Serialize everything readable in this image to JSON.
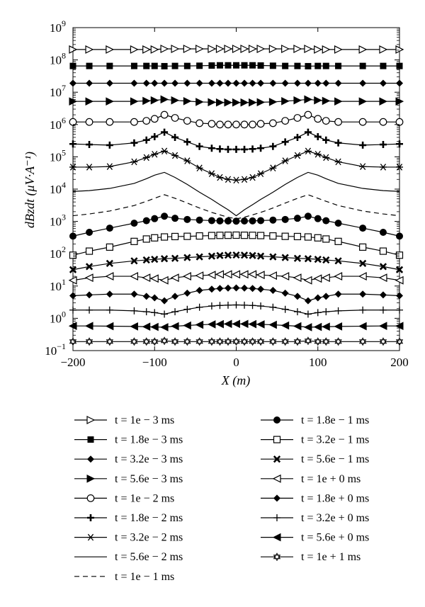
{
  "chart_data": {
    "type": "line",
    "title": "",
    "xlabel": "X (m)",
    "ylabel": "dBzdt (μV·A⁻¹)",
    "xlim": [
      -200,
      200
    ],
    "ylim": [
      0.1,
      1000000000
    ],
    "yscale": "log",
    "grid": false,
    "legend_placement": "bottom",
    "x_ticks": [
      -200,
      -100,
      0,
      100,
      200
    ],
    "y_ticks": [
      {
        "value": 0.1,
        "base": "10",
        "exp": "−1"
      },
      {
        "value": 1,
        "base": "10",
        "exp": "0"
      },
      {
        "value": 10,
        "base": "10",
        "exp": "1"
      },
      {
        "value": 100,
        "base": "10",
        "exp": "2"
      },
      {
        "value": 1000,
        "base": "10",
        "exp": "3"
      },
      {
        "value": 10000,
        "base": "10",
        "exp": "4"
      },
      {
        "value": 100000,
        "base": "10",
        "exp": "5"
      },
      {
        "value": 1000000,
        "base": "10",
        "exp": "6"
      },
      {
        "value": 10000000,
        "base": "10",
        "exp": "7"
      },
      {
        "value": 100000000,
        "base": "10",
        "exp": "8"
      },
      {
        "value": 1000000000,
        "base": "10",
        "exp": "9"
      }
    ],
    "x": [
      -200,
      -180,
      -155,
      -125,
      -110,
      -100,
      -88,
      -75,
      -60,
      -45,
      -30,
      -20,
      -10,
      0,
      10,
      20,
      30,
      45,
      60,
      75,
      88,
      100,
      110,
      125,
      155,
      180,
      200
    ],
    "series": [
      {
        "name": "t = 1e − 3 ms",
        "marker": "tri-right-open",
        "values": [
          210000000.0,
          210000000.0,
          210000000.0,
          210000000.0,
          210000000.0,
          210000000.0,
          220000000.0,
          220000000.0,
          220000000.0,
          220000000.0,
          220000000.0,
          220000000.0,
          220000000.0,
          220000000.0,
          220000000.0,
          220000000.0,
          220000000.0,
          220000000.0,
          220000000.0,
          220000000.0,
          220000000.0,
          210000000.0,
          210000000.0,
          210000000.0,
          210000000.0,
          210000000.0,
          210000000.0
        ]
      },
      {
        "name": "t = 1.8e − 3 ms",
        "marker": "square-filled",
        "values": [
          65000000.0,
          65000000.0,
          65000000.0,
          65000000.0,
          65000000.0,
          65000000.0,
          64000000.0,
          65000000.0,
          65000000.0,
          66000000.0,
          67000000.0,
          68000000.0,
          68000000.0,
          68000000.0,
          68000000.0,
          68000000.0,
          67000000.0,
          66000000.0,
          65000000.0,
          65000000.0,
          64000000.0,
          65000000.0,
          65000000.0,
          65000000.0,
          65000000.0,
          65000000.0,
          65000000.0
        ]
      },
      {
        "name": "t = 3.2e − 3 ms",
        "marker": "diamond-filled",
        "values": [
          19000000.0,
          19000000.0,
          19000000.0,
          19000000.0,
          19000000.0,
          19000000.0,
          19000000.0,
          19000000.0,
          19000000.0,
          19000000.0,
          19000000.0,
          19000000.0,
          19000000.0,
          19000000.0,
          19000000.0,
          19000000.0,
          19000000.0,
          19000000.0,
          19000000.0,
          19000000.0,
          19000000.0,
          19000000.0,
          19000000.0,
          19000000.0,
          19000000.0,
          19000000.0,
          19000000.0
        ]
      },
      {
        "name": "t = 5.6e − 3 ms",
        "marker": "tri-right-filled",
        "values": [
          5200000.0,
          5200000.0,
          5200000.0,
          5200000.0,
          5400000.0,
          5600000.0,
          6000000.0,
          5600000.0,
          5300000.0,
          5000000.0,
          4900000.0,
          4800000.0,
          4800000.0,
          4800000.0,
          4800000.0,
          4800000.0,
          4900000.0,
          5000000.0,
          5300000.0,
          5600000.0,
          6000000.0,
          5600000.0,
          5400000.0,
          5200000.0,
          5200000.0,
          5200000.0,
          5200000.0
        ]
      },
      {
        "name": "t = 1e − 2 ms",
        "marker": "circle-open",
        "values": [
          1200000.0,
          1200000.0,
          1200000.0,
          1200000.0,
          1300000.0,
          1500000.0,
          2000000.0,
          1600000.0,
          1300000.0,
          1100000.0,
          1050000.0,
          1000000.0,
          1000000.0,
          1000000.0,
          1000000.0,
          1000000.0,
          1050000.0,
          1100000.0,
          1300000.0,
          1600000.0,
          2000000.0,
          1500000.0,
          1300000.0,
          1200000.0,
          1200000.0,
          1200000.0,
          1200000.0
        ]
      },
      {
        "name": "t = 1.8e − 2 ms",
        "marker": "plus-thick",
        "values": [
          250000.0,
          240000.0,
          230000.0,
          270000.0,
          330000.0,
          420000.0,
          580000.0,
          400000.0,
          290000.0,
          210000.0,
          185000.0,
          175000.0,
          170000.0,
          170000.0,
          170000.0,
          175000.0,
          185000.0,
          210000.0,
          290000.0,
          400000.0,
          580000.0,
          420000.0,
          330000.0,
          270000.0,
          230000.0,
          240000.0,
          250000.0
        ]
      },
      {
        "name": "t = 3.2e − 2 ms",
        "marker": "asterisk",
        "values": [
          48000.0,
          48000.0,
          50000.0,
          70000.0,
          95000.0,
          120000.0,
          150000.0,
          110000.0,
          75000.0,
          45000.0,
          30000.0,
          23000.0,
          20000.0,
          19000.0,
          20000.0,
          23000.0,
          30000.0,
          45000.0,
          75000.0,
          110000.0,
          150000.0,
          120000.0,
          95000.0,
          70000.0,
          50000.0,
          48000.0,
          48000.0
        ]
      },
      {
        "name": "t = 5.6e − 2 ms",
        "marker": "none-solid",
        "values": [
          8500.0,
          9000.0,
          10500.0,
          15000.0,
          21000.0,
          27000.0,
          33000.0,
          23000.0,
          14000.0,
          8000.0,
          4800.0,
          3300.0,
          2300.0,
          1500.0,
          2300.0,
          3300.0,
          4800.0,
          8000.0,
          14000.0,
          23000.0,
          33000.0,
          27000.0,
          21000.0,
          15000.0,
          10500.0,
          9000.0,
          8500.0
        ]
      },
      {
        "name": "t = 1e − 1 ms",
        "marker": "none-dashed",
        "values": [
          1500.0,
          1700.0,
          2100.0,
          3100.0,
          4200.0,
          5200.0,
          6700.0,
          5200.0,
          3700.0,
          2600.0,
          1900.0,
          1600.0,
          1350.0,
          1200.0,
          1350.0,
          1600.0,
          1900.0,
          2600.0,
          3700.0,
          5200.0,
          6700.0,
          5200.0,
          4200.0,
          3100.0,
          2100.0,
          1700.0,
          1500.0
        ]
      },
      {
        "name": "t = 1.8e − 1 ms",
        "marker": "circle-filled",
        "values": [
          350,
          460,
          620,
          880,
          1050,
          1220,
          1450,
          1250,
          1150,
          1100,
          1060,
          1040,
          1030,
          1020,
          1030,
          1040,
          1060,
          1100,
          1150,
          1250,
          1450,
          1220,
          1050,
          880,
          620,
          460,
          350
        ]
      },
      {
        "name": "t = 3.2e − 1 ms",
        "marker": "square-open",
        "values": [
          90,
          120,
          160,
          240,
          285,
          310,
          330,
          340,
          345,
          355,
          365,
          370,
          372,
          375,
          372,
          370,
          365,
          355,
          345,
          340,
          330,
          310,
          285,
          240,
          160,
          120,
          90
        ]
      },
      {
        "name": "t = 5.6e − 1 ms",
        "marker": "cross-x",
        "values": [
          32,
          40,
          50,
          60,
          64,
          67,
          70,
          72,
          76,
          80,
          84,
          88,
          90,
          91,
          90,
          88,
          84,
          80,
          76,
          72,
          70,
          67,
          64,
          60,
          50,
          40,
          32
        ]
      },
      {
        "name": "t = 1e + 0 ms",
        "marker": "tri-left-open",
        "values": [
          15,
          18,
          20,
          20,
          18,
          17,
          15,
          18,
          20,
          21,
          22,
          23,
          23,
          23,
          23,
          23,
          22,
          21,
          20,
          18,
          15,
          17,
          18,
          20,
          20,
          18,
          15
        ]
      },
      {
        "name": "t = 1.8e + 0 ms",
        "marker": "diamond-filled",
        "values": [
          5.0,
          5.3,
          5.6,
          5.6,
          4.8,
          4.3,
          3.5,
          4.8,
          6.0,
          7.3,
          8.0,
          8.4,
          8.6,
          8.7,
          8.6,
          8.4,
          8.0,
          7.3,
          6.0,
          4.8,
          3.5,
          4.3,
          4.8,
          5.6,
          5.6,
          5.3,
          5.0
        ]
      },
      {
        "name": "t = 3.2e + 0 ms",
        "marker": "plus-thin",
        "values": [
          1.8,
          1.8,
          1.8,
          1.7,
          1.6,
          1.5,
          1.35,
          1.6,
          1.9,
          2.2,
          2.4,
          2.5,
          2.55,
          2.6,
          2.55,
          2.5,
          2.4,
          2.2,
          1.9,
          1.6,
          1.35,
          1.5,
          1.6,
          1.7,
          1.8,
          1.8,
          1.8
        ]
      },
      {
        "name": "t = 5.6e + 0 ms",
        "marker": "tri-left-filled",
        "values": [
          0.58,
          0.58,
          0.57,
          0.56,
          0.55,
          0.54,
          0.53,
          0.57,
          0.6,
          0.63,
          0.65,
          0.66,
          0.67,
          0.67,
          0.67,
          0.66,
          0.65,
          0.63,
          0.6,
          0.57,
          0.53,
          0.54,
          0.55,
          0.56,
          0.57,
          0.58,
          0.58
        ]
      },
      {
        "name": "t = 1e + 1 ms",
        "marker": "star-open",
        "values": [
          0.19,
          0.19,
          0.19,
          0.19,
          0.19,
          0.19,
          0.2,
          0.19,
          0.19,
          0.19,
          0.19,
          0.19,
          0.19,
          0.19,
          0.19,
          0.19,
          0.19,
          0.19,
          0.19,
          0.19,
          0.2,
          0.19,
          0.19,
          0.19,
          0.19,
          0.19,
          0.19
        ]
      }
    ]
  }
}
